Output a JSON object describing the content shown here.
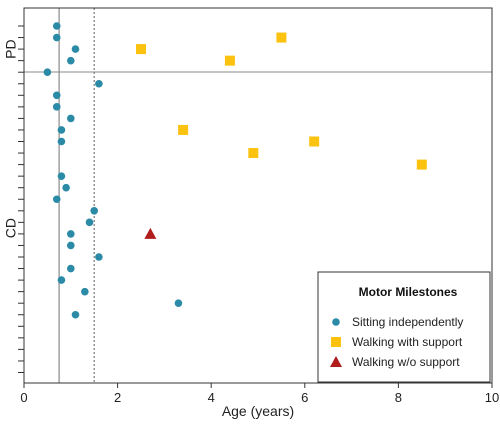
{
  "chart_data": {
    "type": "scatter",
    "xlabel": "Age (years)",
    "xlim": [
      0,
      10
    ],
    "xticks": [
      0,
      2,
      4,
      6,
      8,
      10
    ],
    "groups": [
      {
        "label": "PD",
        "rows": [
          1,
          5
        ]
      },
      {
        "label": "CD",
        "rows": [
          6,
          31
        ]
      }
    ],
    "row_count": 31,
    "reference_lines": [
      {
        "x": 0.75,
        "style": "solid"
      },
      {
        "x": 1.5,
        "style": "dotted"
      }
    ],
    "legend": {
      "title": "Motor Milestones",
      "position": "bottom-right",
      "entries": [
        {
          "name": "Sitting independently",
          "marker": "circle",
          "color": "#2b8aa6"
        },
        {
          "name": "Walking with support",
          "marker": "square",
          "color": "#fbc20f"
        },
        {
          "name": "Walking w/o support",
          "marker": "triangle",
          "color": "#b01c1c"
        }
      ]
    },
    "series": [
      {
        "name": "Sitting independently",
        "points": [
          {
            "row": 1,
            "x": 0.7
          },
          {
            "row": 2,
            "x": 0.7
          },
          {
            "row": 3,
            "x": 1.1
          },
          {
            "row": 4,
            "x": 1.0
          },
          {
            "row": 5,
            "x": 0.5
          },
          {
            "row": 6,
            "x": 1.6
          },
          {
            "row": 7,
            "x": 0.7
          },
          {
            "row": 8,
            "x": 0.7
          },
          {
            "row": 9,
            "x": 1.0
          },
          {
            "row": 10,
            "x": 0.8
          },
          {
            "row": 11,
            "x": 0.8
          },
          {
            "row": 14,
            "x": 0.8
          },
          {
            "row": 15,
            "x": 0.9
          },
          {
            "row": 16,
            "x": 0.7
          },
          {
            "row": 17,
            "x": 1.5
          },
          {
            "row": 18,
            "x": 1.4
          },
          {
            "row": 19,
            "x": 1.0
          },
          {
            "row": 20,
            "x": 1.0
          },
          {
            "row": 21,
            "x": 1.6
          },
          {
            "row": 22,
            "x": 1.0
          },
          {
            "row": 23,
            "x": 0.8
          },
          {
            "row": 24,
            "x": 1.3
          },
          {
            "row": 25,
            "x": 3.3
          },
          {
            "row": 26,
            "x": 1.1
          }
        ]
      },
      {
        "name": "Walking with support",
        "points": [
          {
            "row": 2,
            "x": 5.5
          },
          {
            "row": 3,
            "x": 2.5
          },
          {
            "row": 4,
            "x": 4.4
          },
          {
            "row": 10,
            "x": 3.4
          },
          {
            "row": 11,
            "x": 6.2
          },
          {
            "row": 12,
            "x": 4.9
          },
          {
            "row": 13,
            "x": 8.5
          }
        ]
      },
      {
        "name": "Walking w/o support",
        "points": [
          {
            "row": 19,
            "x": 2.7
          }
        ]
      }
    ]
  }
}
